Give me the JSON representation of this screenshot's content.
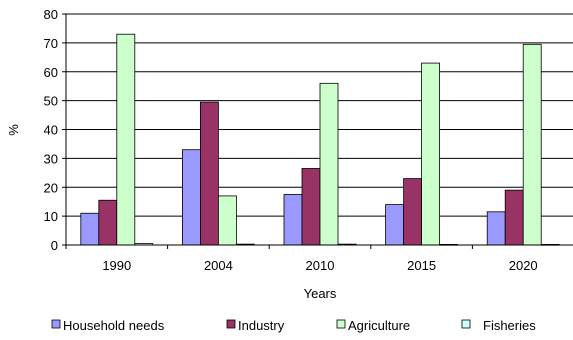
{
  "chart_data": {
    "type": "bar",
    "title": "",
    "xlabel": "Years",
    "ylabel": "%",
    "ylim": [
      0,
      80
    ],
    "yticks": [
      "0",
      "10",
      "20",
      "30",
      "40",
      "50",
      "60",
      "70",
      "80"
    ],
    "grid": true,
    "legend_position": "bottom",
    "categories": [
      "1990",
      "2004",
      "2010",
      "2015",
      "2020"
    ],
    "series": [
      {
        "name": "Household needs",
        "color": "#9999ff",
        "values": [
          11,
          33,
          17.5,
          14,
          11.5
        ]
      },
      {
        "name": "Industry",
        "color": "#993366",
        "values": [
          15.5,
          49.5,
          26.5,
          23,
          19
        ]
      },
      {
        "name": "Agriculture",
        "color": "#ccffcc",
        "values": [
          73,
          17,
          56,
          63,
          69.5
        ]
      },
      {
        "name": "Fisheries",
        "color": "#ccffff",
        "values": [
          0.5,
          0.3,
          0.3,
          0.2,
          0.2
        ]
      }
    ]
  }
}
